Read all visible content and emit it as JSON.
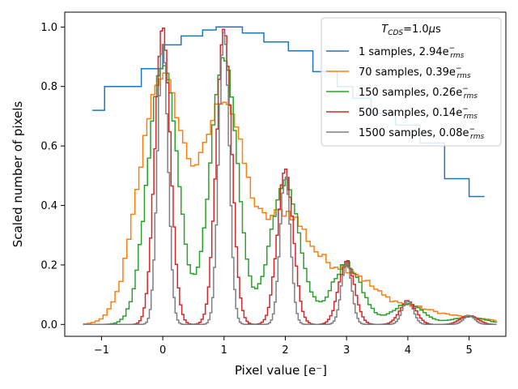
{
  "chart_data": {
    "type": "line",
    "style": "step",
    "xlabel": "Pixel value [e⁻]",
    "ylabel": "Scaled number of pixels",
    "xlim": [
      -1.6,
      5.6
    ],
    "ylim": [
      -0.04,
      1.05
    ],
    "xticks": [
      -1,
      0,
      1,
      2,
      3,
      4,
      5
    ],
    "xtick_labels": [
      "−1",
      "0",
      "1",
      "2",
      "3",
      "4",
      "5"
    ],
    "yticks": [
      0.0,
      0.2,
      0.4,
      0.6,
      0.8,
      1.0
    ],
    "ytick_labels": [
      "0.0",
      "0.2",
      "0.4",
      "0.6",
      "0.8",
      "1.0"
    ],
    "grid": false,
    "legend": {
      "title": "T_CDS=1.0μs",
      "position": "top-right"
    },
    "series": [
      {
        "name": "1 samples, 2.94e⁻_rms",
        "label_main": "1 samples, 2.94e",
        "label_sup": "−",
        "label_sub": "rms",
        "color": "#1f77b4",
        "kind": "step",
        "x": [
          -1.15,
          -0.95,
          -0.52,
          -0.35,
          0.0,
          0.3,
          0.65,
          0.87,
          1.3,
          1.65,
          2.05,
          2.45,
          2.6,
          2.85,
          3.1,
          3.4,
          3.8,
          4.2,
          4.6,
          5.0,
          5.25
        ],
        "y": [
          0.72,
          0.8,
          0.8,
          0.86,
          0.94,
          0.97,
          0.99,
          1.0,
          0.98,
          0.95,
          0.92,
          0.85,
          0.85,
          0.8,
          0.76,
          0.71,
          0.67,
          0.61,
          0.49,
          0.43,
          0.43
        ]
      },
      {
        "name": "70 samples, 0.39e⁻_rms",
        "label_main": "70 samples, 0.39e",
        "label_sup": "−",
        "label_sub": "rms",
        "color": "#ff7f0e",
        "kind": "sum",
        "baseline": 0.0,
        "peaks": [
          {
            "mu": -0.02,
            "amp": 0.83,
            "sigma": 0.36
          },
          {
            "mu": 1.0,
            "amp": 0.73,
            "sigma": 0.34
          },
          {
            "mu": 2.0,
            "amp": 0.36,
            "sigma": 0.4
          },
          {
            "mu": 3.0,
            "amp": 0.17,
            "sigma": 0.42
          },
          {
            "mu": 4.0,
            "amp": 0.055,
            "sigma": 0.45
          },
          {
            "mu": 5.0,
            "amp": 0.02,
            "sigma": 0.45
          }
        ],
        "x_range": [
          -1.3,
          5.45
        ],
        "bin": 0.065,
        "jitter": 0.02
      },
      {
        "name": "150 samples, 0.26e⁻_rms",
        "label_main": "150 samples, 0.26e",
        "label_sup": "−",
        "label_sub": "rms",
        "color": "#2ca02c",
        "kind": "sum",
        "baseline": 0.0,
        "peaks": [
          {
            "mu": 0.0,
            "amp": 0.88,
            "sigma": 0.24
          },
          {
            "mu": 1.0,
            "amp": 0.9,
            "sigma": 0.22
          },
          {
            "mu": 2.0,
            "amp": 0.48,
            "sigma": 0.24
          },
          {
            "mu": 3.0,
            "amp": 0.2,
            "sigma": 0.25
          },
          {
            "mu": 4.0,
            "amp": 0.07,
            "sigma": 0.25
          },
          {
            "mu": 5.0,
            "amp": 0.025,
            "sigma": 0.28
          }
        ],
        "x_range": [
          -1.3,
          5.45
        ],
        "bin": 0.05,
        "jitter": 0.015
      },
      {
        "name": "500 samples, 0.14e⁻_rms",
        "label_main": "500 samples, 0.14e",
        "label_sup": "−",
        "label_sub": "rms",
        "color": "#d62728",
        "kind": "sum",
        "baseline": 0.0,
        "peaks": [
          {
            "mu": 0.0,
            "amp": 1.0,
            "sigma": 0.125
          },
          {
            "mu": 1.0,
            "amp": 0.99,
            "sigma": 0.125
          },
          {
            "mu": 2.0,
            "amp": 0.52,
            "sigma": 0.13
          },
          {
            "mu": 3.0,
            "amp": 0.21,
            "sigma": 0.13
          },
          {
            "mu": 4.0,
            "amp": 0.08,
            "sigma": 0.13
          },
          {
            "mu": 5.0,
            "amp": 0.03,
            "sigma": 0.14
          }
        ],
        "x_range": [
          -1.3,
          5.45
        ],
        "bin": 0.035,
        "jitter": 0.01
      },
      {
        "name": "1500 samples, 0.08e⁻_rms",
        "label_main": "1500 samples, 0.08e",
        "label_sup": "−",
        "label_sub": "rms",
        "color": "#7f7f7f",
        "kind": "sum",
        "baseline": 0.0,
        "peaks": [
          {
            "mu": 0.0,
            "amp": 0.95,
            "sigma": 0.085
          },
          {
            "mu": 1.0,
            "amp": 0.99,
            "sigma": 0.085
          },
          {
            "mu": 2.0,
            "amp": 0.5,
            "sigma": 0.085
          },
          {
            "mu": 3.0,
            "amp": 0.21,
            "sigma": 0.085
          },
          {
            "mu": 4.0,
            "amp": 0.08,
            "sigma": 0.09
          },
          {
            "mu": 5.0,
            "amp": 0.03,
            "sigma": 0.09
          }
        ],
        "x_range": [
          -1.3,
          5.45
        ],
        "bin": 0.03,
        "jitter": 0.008
      }
    ]
  }
}
